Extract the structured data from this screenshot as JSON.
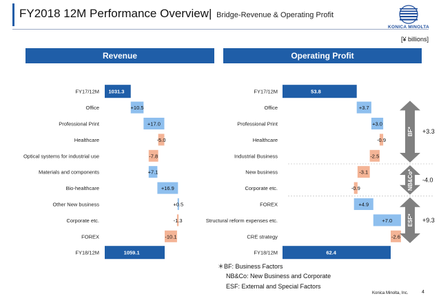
{
  "header": {
    "title": "FY2018 12M Performance Overview",
    "separator": "|",
    "subtitle": "Bridge-Revenue & Operating Profit"
  },
  "logo": {
    "icon": "konica-minolta-globe-icon",
    "text": "KONICA MINOLTA"
  },
  "unit_label": "[¥ billions]",
  "colors": {
    "base": "#1f5ea8",
    "positive": "#8ebfee",
    "negative": "#f4b496",
    "bracket": "#808080"
  },
  "revenue": {
    "heading": "Revenue",
    "start": {
      "label": "FY17/12M",
      "value": 1031.3,
      "text": "1031.3"
    },
    "items": [
      {
        "label": "Office",
        "value": 10.5,
        "text": "+10.5"
      },
      {
        "label": "Professional Print",
        "value": 17.0,
        "text": "+17.0"
      },
      {
        "label": "Healthcare",
        "value": -5.0,
        "text": "-5.0"
      },
      {
        "label": "Optical systems for industrial use",
        "value": -7.8,
        "text": "-7.8"
      },
      {
        "label": "Materials and components",
        "value": 7.1,
        "text": "+7.1"
      },
      {
        "label": "Bio-healthcare",
        "value": 16.9,
        "text": "+16.9"
      },
      {
        "label": "Other New business",
        "value": 0.5,
        "text": "+0.5"
      },
      {
        "label": "Corporate etc.",
        "value": -1.3,
        "text": "-1.3"
      },
      {
        "label": "FOREX",
        "value": -10.1,
        "text": "-10.1"
      }
    ],
    "end": {
      "label": "FY18/12M",
      "value": 1059.1,
      "text": "1059.1"
    }
  },
  "operating_profit": {
    "heading": "Operating Profit",
    "start": {
      "label": "FY17/12M",
      "value": 53.8,
      "text": "53.8"
    },
    "items": [
      {
        "label": "Office",
        "value": 3.7,
        "text": "+3.7"
      },
      {
        "label": "Professional Print",
        "value": 3.0,
        "text": "+3.0"
      },
      {
        "label": "Healthcare",
        "value": -0.9,
        "text": "-0.9"
      },
      {
        "label": "Industrial Business",
        "value": -2.5,
        "text": "-2.5"
      },
      {
        "label": "New business",
        "value": -3.1,
        "text": "-3.1"
      },
      {
        "label": "Corporate etc.",
        "value": -0.9,
        "text": "-0.9"
      },
      {
        "label": "FOREX",
        "value": 4.9,
        "text": "+4.9"
      },
      {
        "label": "Structural reform expenses etc.",
        "value": 7.0,
        "text": "+7.0"
      },
      {
        "label": "CRE strategy",
        "value": -2.6,
        "text": "-2.6"
      }
    ],
    "end": {
      "label": "FY18/12M",
      "value": 62.4,
      "text": "62.4"
    },
    "groups": [
      {
        "tag": "BF*",
        "total": "+3.3",
        "from": 0,
        "to": 3
      },
      {
        "tag": "NB&Co*",
        "total": "-4.0",
        "from": 4,
        "to": 5
      },
      {
        "tag": "ESF*",
        "total": "+9.3",
        "from": 6,
        "to": 8
      }
    ]
  },
  "footnotes": [
    "＊BF: Business Factors",
    "NB&Co: New Business and Corporate",
    "ESF: External and Special Factors"
  ],
  "footer": {
    "company": "Konica Minolta, Inc.",
    "page": "4"
  }
}
